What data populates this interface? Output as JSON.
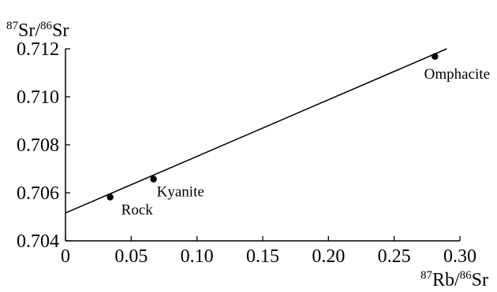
{
  "chart_data": {
    "type": "scatter",
    "title": "",
    "xlabel": {
      "sup1": "87",
      "text1": "Rb/",
      "sup2": "86",
      "text2": "Sr"
    },
    "ylabel": {
      "sup1": "87",
      "text1": "Sr/",
      "sup2": "86",
      "text2": "Sr"
    },
    "xlim": [
      0,
      0.3
    ],
    "ylim": [
      0.704,
      0.712
    ],
    "x_ticks": [
      "0",
      "0.05",
      "0.10",
      "0.15",
      "0.20",
      "0.25",
      "0.30"
    ],
    "x_tick_values": [
      0,
      0.05,
      0.1,
      0.15,
      0.2,
      0.25,
      0.3
    ],
    "y_ticks": [
      "0.704",
      "0.706",
      "0.708",
      "0.710",
      "0.712"
    ],
    "y_tick_values": [
      0.704,
      0.706,
      0.708,
      0.71,
      0.712
    ],
    "points": [
      {
        "label": "Rock",
        "x": 0.034,
        "y": 0.70582
      },
      {
        "label": "Kyanite",
        "x": 0.067,
        "y": 0.70657
      },
      {
        "label": "Omphacite",
        "x": 0.281,
        "y": 0.71168
      }
    ],
    "fit_line": {
      "x": [
        0,
        0.29
      ],
      "y": [
        0.70516,
        0.712
      ]
    },
    "grid": false,
    "legend": "none"
  }
}
